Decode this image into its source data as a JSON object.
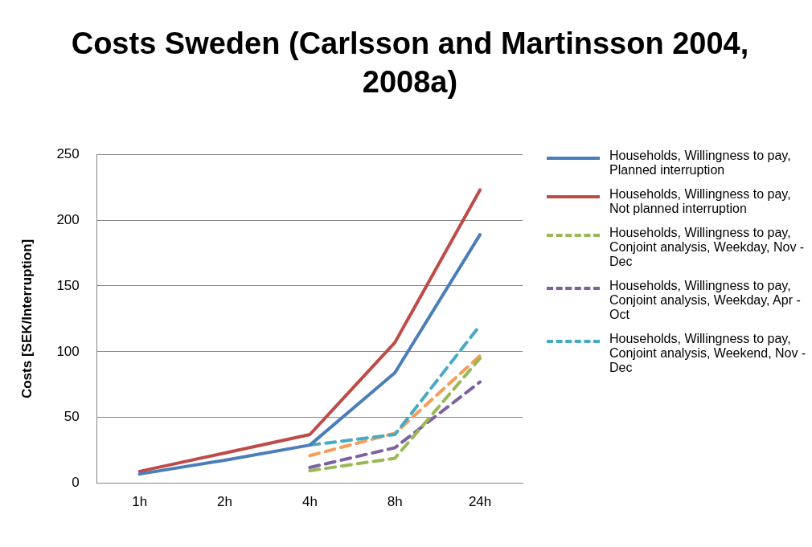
{
  "chart_data": {
    "type": "line",
    "title": "Costs Sweden (Carlsson and Martinsson 2004, 2008a)",
    "ylabel": "Costs [SEK/Interruption]",
    "categories": [
      "1h",
      "2h",
      "4h",
      "8h",
      "24h"
    ],
    "ylim": [
      0,
      250
    ],
    "yticks": [
      0,
      50,
      100,
      150,
      200,
      250
    ],
    "grid": "y",
    "legend": "right",
    "marker": "none",
    "series": [
      {
        "name": "Households, Willingness to pay, Planned interruption",
        "color": "#4a7ebb",
        "line_style": "solid",
        "values": [
          7,
          17.5,
          29,
          84,
          189
        ]
      },
      {
        "name": "Households, Willingness to pay, Not planned interruption",
        "color": "#be4b48",
        "line_style": "solid",
        "values": [
          9,
          23,
          37,
          107,
          223
        ]
      },
      {
        "name": "Households, Willingness to pay, Conjoint analysis, Weekday, Nov - Dec",
        "color": "#98b954",
        "line_style": "dashed",
        "values": [
          null,
          null,
          9.5,
          19,
          95
        ]
      },
      {
        "name": "Households, Willingness to pay, Conjoint analysis, Weekday, Apr - Oct",
        "color": "#7d60a0",
        "line_style": "dashed",
        "values": [
          null,
          null,
          12,
          27,
          77
        ]
      },
      {
        "name": "Households, Willingness to pay, Conjoint analysis, Weekend, Nov - Dec",
        "color": "#46aac5",
        "line_style": "dashed",
        "values": [
          null,
          null,
          29,
          37,
          120
        ]
      },
      {
        "color": "#f59d56",
        "line_style": "dashed",
        "values": [
          null,
          null,
          21,
          38,
          97
        ]
      }
    ]
  }
}
